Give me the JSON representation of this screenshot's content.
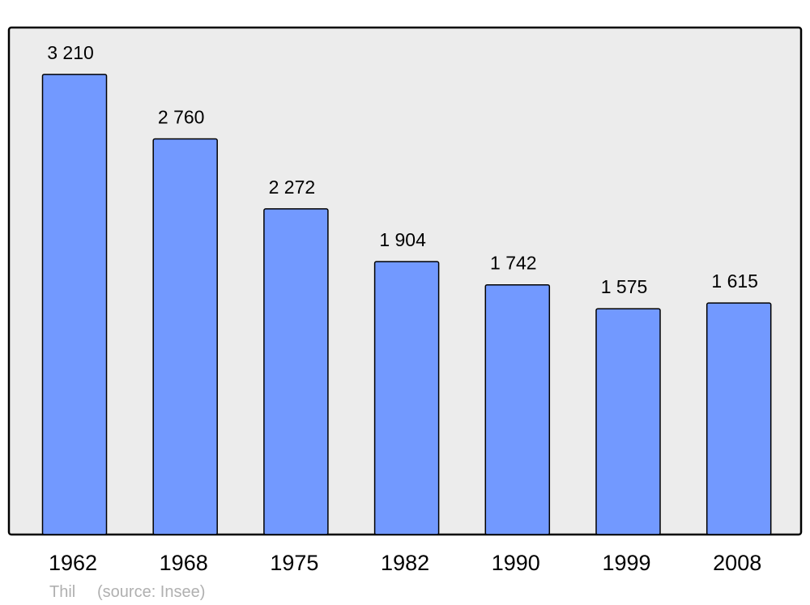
{
  "chart_data": {
    "type": "bar",
    "title": "",
    "xlabel": "",
    "ylabel": "",
    "categories": [
      "1962",
      "1968",
      "1975",
      "1982",
      "1990",
      "1999",
      "2008"
    ],
    "values": [
      3210,
      2760,
      2272,
      1904,
      1742,
      1575,
      1615
    ],
    "value_labels": [
      "3 210",
      "2 760",
      "2 272",
      "1 904",
      "1 742",
      "1 575",
      "1 615"
    ],
    "ylim": [
      0,
      3537
    ],
    "grid": false,
    "colors": {
      "bar": "#7299ff",
      "plot_background": "#ececec",
      "border": "#000000"
    }
  },
  "footer": {
    "place": "Thil",
    "source": "(source: Insee)"
  }
}
